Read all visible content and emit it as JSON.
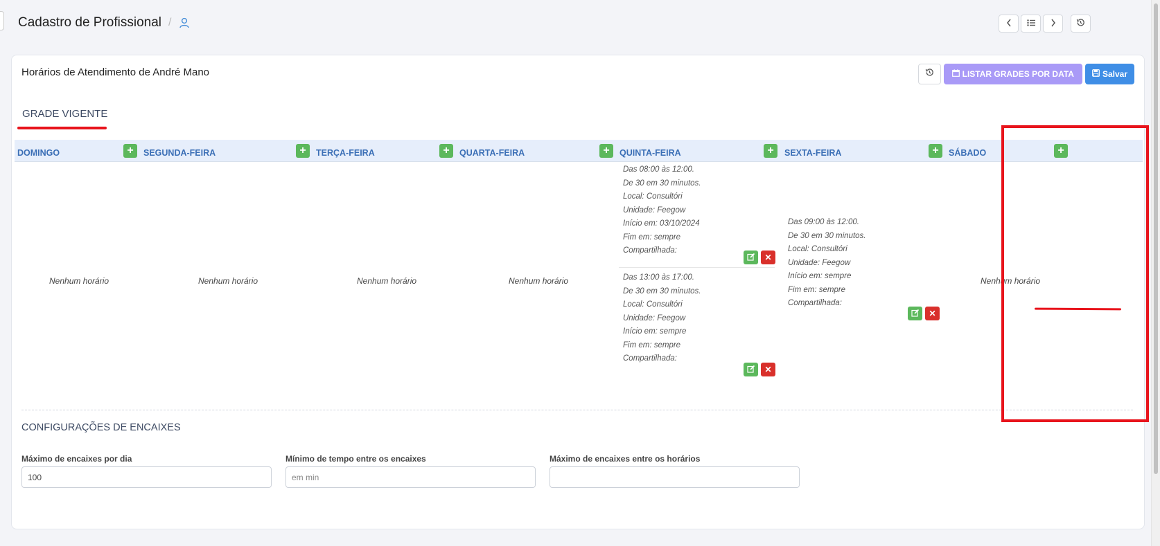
{
  "page": {
    "title": "Cadastro de Profissional",
    "separator": "/"
  },
  "card": {
    "title": "Horários de Atendimento de André Mano",
    "list_button": "LISTAR GRADES POR DATA",
    "save_button": "Salvar"
  },
  "grade": {
    "title": "GRADE VIGENTE",
    "empty_text": "Nenhum horário",
    "days": [
      {
        "label": "DOMINGO"
      },
      {
        "label": "SEGUNDA-FEIRA"
      },
      {
        "label": "TERÇA-FEIRA"
      },
      {
        "label": "QUARTA-FEIRA"
      },
      {
        "label": "QUINTA-FEIRA"
      },
      {
        "label": "SEXTA-FEIRA"
      },
      {
        "label": "SÁBADO"
      }
    ],
    "entries": {
      "quinta_1": [
        "Das 08:00 às 12:00.",
        "De 30 em 30 minutos.",
        "Local: Consultóri",
        "Unidade: Feegow",
        "Início em: 03/10/2024",
        "Fim em: sempre",
        "Compartilhada:"
      ],
      "quinta_2": [
        "Das 13:00 às 17:00.",
        "De 30 em 30 minutos.",
        "Local: Consultóri",
        "Unidade: Feegow",
        "Início em: sempre",
        "Fim em: sempre",
        "Compartilhada:"
      ],
      "sexta_1": [
        "Das 09:00 às 12:00.",
        "De 30 em 30 minutos.",
        "Local: Consultóri",
        "Unidade: Feegow",
        "Início em: sempre",
        "Fim em: sempre",
        "Compartilhada:"
      ]
    }
  },
  "config": {
    "title": "CONFIGURAÇÕES DE ENCAIXES",
    "fields": [
      {
        "label": "Máximo de encaixes por dia",
        "value": "100",
        "placeholder": ""
      },
      {
        "label": "Mínimo de tempo entre os encaixes",
        "value": "",
        "placeholder": "em min"
      },
      {
        "label": "Máximo de encaixes entre os horários",
        "value": "",
        "placeholder": ""
      }
    ]
  },
  "icons": {
    "user": "user-icon",
    "prev": "chevron-left-icon",
    "list": "list-icon",
    "next": "chevron-right-icon",
    "history": "history-icon",
    "calendar": "calendar-icon",
    "save": "save-icon",
    "add": "plus-icon",
    "edit": "edit-icon",
    "delete": "close-icon"
  },
  "colors": {
    "accent": "#3f8ee6",
    "purple": "#a99af7",
    "green": "#5cb85c",
    "red": "#d9302b",
    "highlight": "#e8141c"
  }
}
